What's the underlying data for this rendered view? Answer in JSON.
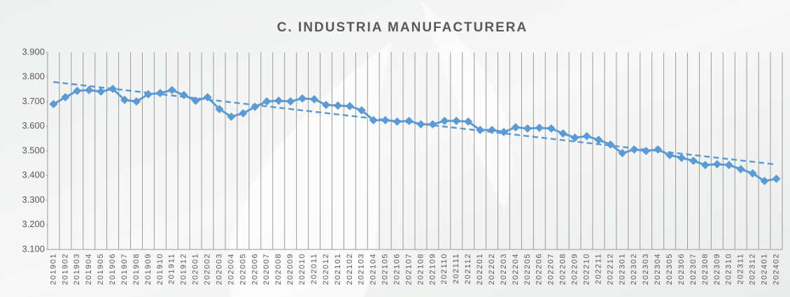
{
  "chart_data": {
    "type": "line",
    "title": "C. INDUSTRIA MANUFACTURERA",
    "categories": [
      "201901",
      "201902",
      "201903",
      "201904",
      "201905",
      "201906",
      "201907",
      "201908",
      "201909",
      "201910",
      "201911",
      "201912",
      "202001",
      "202002",
      "202003",
      "202004",
      "202005",
      "202006",
      "202007",
      "202008",
      "202009",
      "202010",
      "202011",
      "202012",
      "202101",
      "202102",
      "202103",
      "202104",
      "202105",
      "202106",
      "202107",
      "202108",
      "202109",
      "202110",
      "202111",
      "202112",
      "202201",
      "202202",
      "202203",
      "202204",
      "202205",
      "202206",
      "202207",
      "202208",
      "202209",
      "202210",
      "202211",
      "202212",
      "202301",
      "202302",
      "202303",
      "202304",
      "202305",
      "202306",
      "202307",
      "202308",
      "202309",
      "202310",
      "202311",
      "202312",
      "202401",
      "202402"
    ],
    "values": [
      3690,
      3718,
      3744,
      3747,
      3741,
      3752,
      3707,
      3701,
      3730,
      3735,
      3747,
      3727,
      3704,
      3718,
      3670,
      3639,
      3653,
      3679,
      3701,
      3704,
      3701,
      3713,
      3710,
      3687,
      3684,
      3682,
      3665,
      3625,
      3625,
      3619,
      3622,
      3608,
      3608,
      3622,
      3622,
      3619,
      3585,
      3585,
      3577,
      3596,
      3591,
      3594,
      3591,
      3571,
      3554,
      3560,
      3545,
      3526,
      3491,
      3506,
      3500,
      3506,
      3483,
      3472,
      3460,
      3443,
      3446,
      3443,
      3426,
      3409,
      3378,
      3387
    ],
    "color": "#5b9bd5",
    "trendline": {
      "values": [
        3780,
        3445
      ],
      "color": "#5b9bd5"
    },
    "ylim": [
      3100,
      3900
    ],
    "yticks": [
      {
        "value": 3100,
        "label": "3.100"
      },
      {
        "value": 3200,
        "label": "3.200"
      },
      {
        "value": 3300,
        "label": "3.300"
      },
      {
        "value": 3400,
        "label": "3.400"
      },
      {
        "value": 3500,
        "label": "3.500"
      },
      {
        "value": 3600,
        "label": "3.600"
      },
      {
        "value": 3700,
        "label": "3.700"
      },
      {
        "value": 3800,
        "label": "3.800"
      },
      {
        "value": 3900,
        "label": "3.900"
      }
    ],
    "grid": "x"
  }
}
